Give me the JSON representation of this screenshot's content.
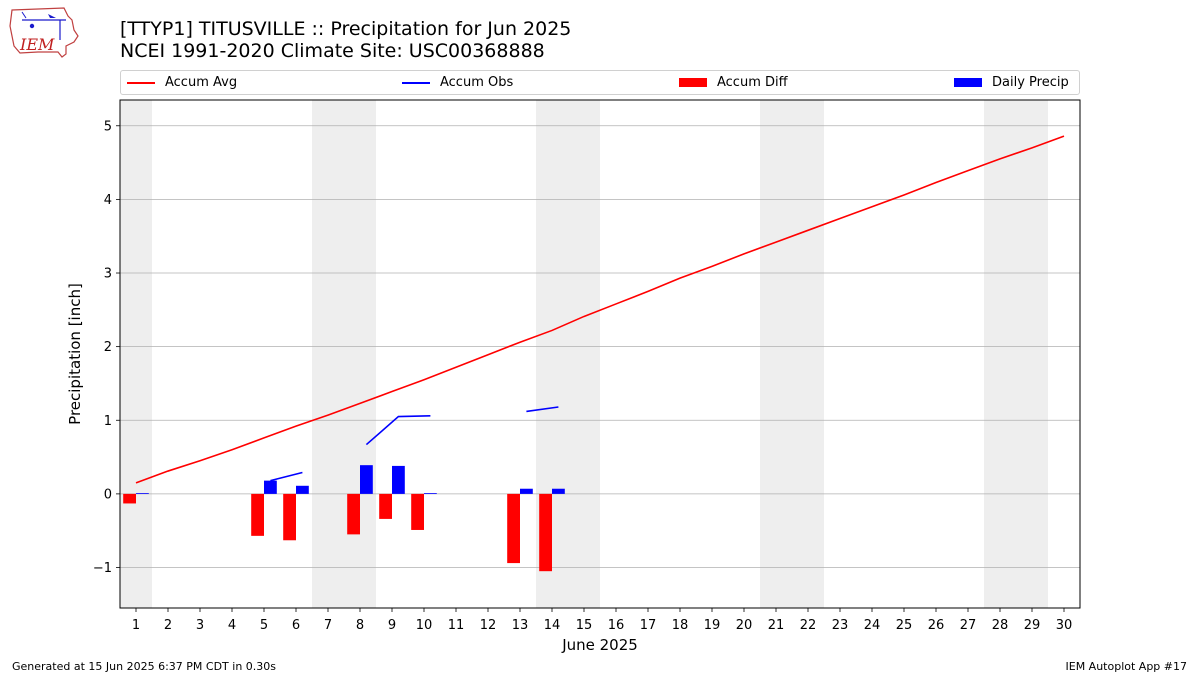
{
  "header": {
    "title_line1": "[TTYP1] TITUSVILLE :: Precipitation for Jun 2025",
    "title_line2": "NCEI 1991-2020 Climate Site: USC00368888",
    "logo_text": "IEM"
  },
  "footer": {
    "generated": "Generated at 15 Jun 2025 6:37 PM CDT in 0.30s",
    "app": "IEM Autoplot App #17"
  },
  "colors": {
    "accum_avg": "#ff0000",
    "accum_obs": "#0000ff",
    "accum_diff": "#ff0000",
    "daily_precip": "#0000ff",
    "weekend_shade": "#eeeeee",
    "grid": "#b0b0b0"
  },
  "chart_data": {
    "type": "bar",
    "xlabel": "June 2025",
    "ylabel": "Precipitation [inch]",
    "xlim": [
      0.5,
      30.5
    ],
    "ylim": [
      -1.55,
      5.35
    ],
    "yticks": [
      -1,
      0,
      1,
      2,
      3,
      4,
      5
    ],
    "ytick_labels": [
      "−1",
      "0",
      "1",
      "2",
      "3",
      "4",
      "5"
    ],
    "days": [
      1,
      2,
      3,
      4,
      5,
      6,
      7,
      8,
      9,
      10,
      11,
      12,
      13,
      14,
      15,
      16,
      17,
      18,
      19,
      20,
      21,
      22,
      23,
      24,
      25,
      26,
      27,
      28,
      29,
      30
    ],
    "weekend_days": [
      1,
      7,
      8,
      14,
      15,
      21,
      22,
      28,
      29
    ],
    "grid": "y",
    "legend_position": "top",
    "legend": [
      "Accum Avg",
      "Accum Obs",
      "Accum Diff",
      "Daily Precip"
    ],
    "series": [
      {
        "name": "Accum Avg",
        "type": "line",
        "days": [
          1,
          2,
          3,
          4,
          5,
          6,
          7,
          8,
          9,
          10,
          11,
          12,
          13,
          14,
          15,
          16,
          17,
          18,
          19,
          20,
          21,
          22,
          23,
          24,
          25,
          26,
          27,
          28,
          29,
          30
        ],
        "values": [
          0.15,
          0.31,
          0.45,
          0.6,
          0.76,
          0.92,
          1.07,
          1.23,
          1.39,
          1.55,
          1.72,
          1.89,
          2.06,
          2.22,
          2.41,
          2.58,
          2.75,
          2.93,
          3.09,
          3.26,
          3.42,
          3.58,
          3.74,
          3.9,
          4.06,
          4.23,
          4.39,
          4.55,
          4.7,
          4.86
        ]
      },
      {
        "name": "Accum Obs",
        "type": "line",
        "segments": [
          {
            "days": [
              5,
              6
            ],
            "values": [
              0.18,
              0.29
            ]
          },
          {
            "days": [
              8,
              9,
              10
            ],
            "values": [
              0.67,
              1.05,
              1.06
            ]
          },
          {
            "days": [
              13,
              14
            ],
            "values": [
              1.12,
              1.18
            ]
          }
        ]
      },
      {
        "name": "Accum Diff",
        "type": "bar",
        "days": [
          1,
          5,
          6,
          8,
          9,
          10,
          13,
          14
        ],
        "values": [
          -0.13,
          -0.57,
          -0.63,
          -0.55,
          -0.34,
          -0.49,
          -0.94,
          -1.05
        ]
      },
      {
        "name": "Daily Precip",
        "type": "bar",
        "days": [
          1,
          5,
          6,
          8,
          9,
          10,
          13,
          14
        ],
        "values": [
          0.01,
          0.18,
          0.11,
          0.39,
          0.38,
          0.01,
          0.07,
          0.07
        ]
      }
    ]
  }
}
